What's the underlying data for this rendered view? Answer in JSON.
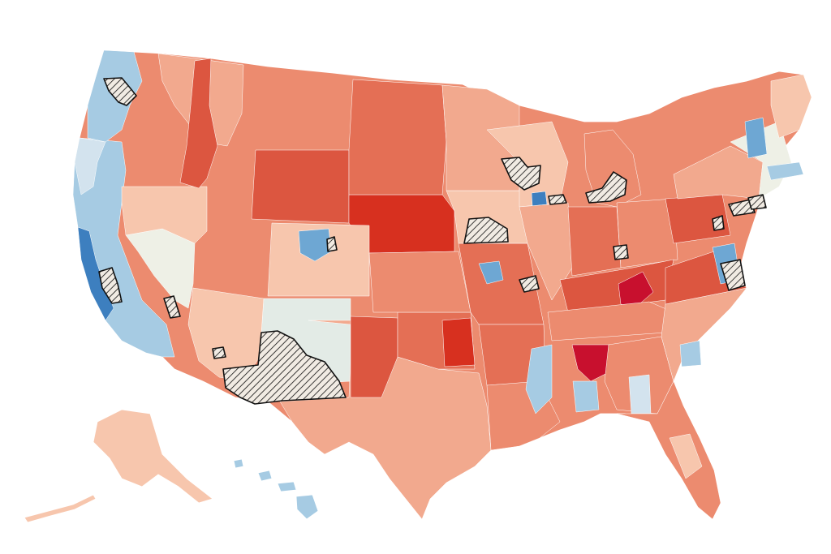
{
  "map": {
    "palette": {
      "strong_red": "#c8102e",
      "deep_red": "#d7301f",
      "red": "#dc5640",
      "mid_red": "#e46f55",
      "salmon": "#ec8b6f",
      "light_salmon": "#f2a98e",
      "pale_salmon": "#f7c6ad",
      "neutral": "#eef0e6",
      "pale_blue": "#d3e3ee",
      "light_blue": "#a6cbe3",
      "mid_blue": "#6ea7d3",
      "blue": "#3d7fbf",
      "dark_blue": "#1f5fa6",
      "hatch_fill": "#f1ebe3",
      "hatch_line": "#111111"
    },
    "legend_labels": [],
    "hatched_areas": [
      "seattle-area",
      "sf-bay-area",
      "los-angeles-area",
      "phoenix-area",
      "tucson-area",
      "denver-area",
      "minneapolis-area",
      "des-moines-area",
      "st-louis-area",
      "chicago-area",
      "detroit-area",
      "cincinnati-area",
      "pittsburgh-area",
      "philadelphia-area",
      "new-york-area",
      "washington-dc-area"
    ]
  }
}
